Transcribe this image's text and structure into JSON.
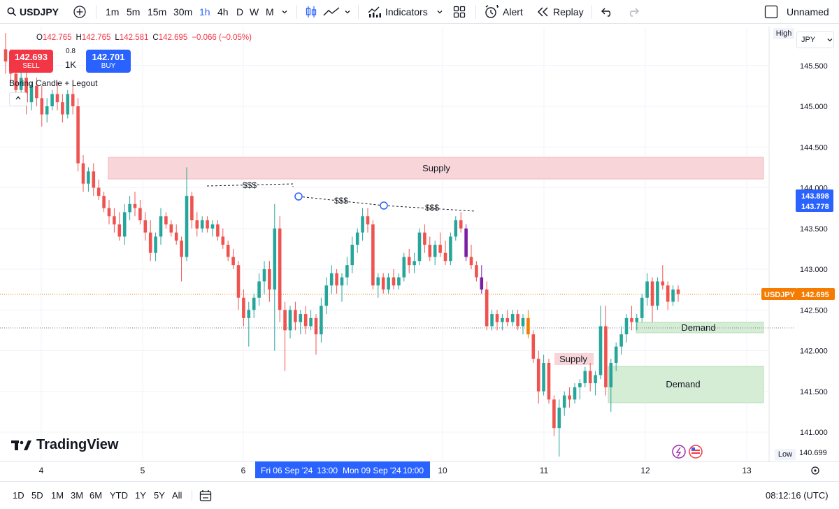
{
  "toolbar": {
    "symbol": "USDJPY",
    "timeframes": [
      "1m",
      "5m",
      "15m",
      "30m",
      "1h",
      "4h",
      "D",
      "W",
      "M"
    ],
    "active_timeframe": "1h",
    "indicators_label": "Indicators",
    "alert_label": "Alert",
    "replay_label": "Replay",
    "layout_name": "Unnamed"
  },
  "legend": {
    "open_label": "O",
    "open": "142.765",
    "high_label": "H",
    "high": "142.765",
    "low_label": "L",
    "low": "142.581",
    "close_label": "C",
    "close": "142.695",
    "change": "−0.066 (−0.05%)"
  },
  "trade": {
    "sell_price": "142.693",
    "sell_label": "SELL",
    "spread": "0.8",
    "quantity": "1K",
    "buy_price": "142.701",
    "buy_label": "BUY"
  },
  "indicator_name": "Boring Candle + Legout",
  "currency": "JPY",
  "price_axis": {
    "high_flag": "High",
    "low_flag": "Low",
    "low_value": "140.699",
    "ticks": [
      "145.500",
      "145.000",
      "144.500",
      "144.000",
      "143.500",
      "143.000",
      "142.500",
      "142.000",
      "141.500",
      "141.000"
    ],
    "last_label": "USDJPY",
    "last_price": "142.695",
    "selection_top": "143.898",
    "selection_bottom": "143.778"
  },
  "time_axis": {
    "ticks": [
      "4",
      "5",
      "6",
      "10",
      "11",
      "12",
      "13"
    ],
    "range_start": "Fri 06 Sep '24",
    "range_start_time": "13:00",
    "range_end": "Mon 09 Sep '24",
    "range_end_time": "10:00"
  },
  "zones": {
    "supply_main": "Supply",
    "supply_small": "Supply",
    "demand_upper": "Demand",
    "demand_lower": "Demand",
    "liquidity_1": "$$$",
    "liquidity_2": "$$$",
    "liquidity_3": "$$$"
  },
  "colors": {
    "up": "#26a69a",
    "down": "#ef5350",
    "orange": "#f57c00",
    "purple": "#7b1fa2",
    "supply_fill": "#f8d5d8",
    "demand_fill": "#d5ecd5",
    "accent": "#2962ff"
  },
  "brand": "TradingView",
  "bottombar": {
    "ranges": [
      "1D",
      "5D",
      "1M",
      "3M",
      "6M",
      "YTD",
      "1Y",
      "5Y",
      "All"
    ],
    "clock": "08:12:16 (UTC)"
  },
  "chart_data": {
    "type": "candlestick",
    "symbol": "USDJPY",
    "interval": "1h",
    "ylim": [
      140.6,
      145.9
    ],
    "candles": [
      [
        145.7,
        145.9,
        145.4,
        145.55
      ],
      [
        145.55,
        145.7,
        145.3,
        145.4
      ],
      [
        145.4,
        145.55,
        145.05,
        145.2
      ],
      [
        145.2,
        145.45,
        145.1,
        145.35
      ],
      [
        145.35,
        145.5,
        144.9,
        145.05
      ],
      [
        145.05,
        145.3,
        144.95,
        145.25
      ],
      [
        145.25,
        145.35,
        145.0,
        145.1
      ],
      [
        145.1,
        145.25,
        144.75,
        144.9
      ],
      [
        144.9,
        145.1,
        144.8,
        145.0
      ],
      [
        145.0,
        145.2,
        144.95,
        145.15
      ],
      [
        145.15,
        145.3,
        144.95,
        145.05
      ],
      [
        145.05,
        145.15,
        144.8,
        144.9
      ],
      [
        144.9,
        145.2,
        144.85,
        145.15
      ],
      [
        145.15,
        145.25,
        144.9,
        145.0
      ],
      [
        145.0,
        145.1,
        144.2,
        144.3
      ],
      [
        144.3,
        144.4,
        143.95,
        144.05
      ],
      [
        144.05,
        144.25,
        143.95,
        144.2
      ],
      [
        144.2,
        144.3,
        143.9,
        144.0
      ],
      [
        144.0,
        144.1,
        143.85,
        143.9
      ],
      [
        143.9,
        143.95,
        143.7,
        143.75
      ],
      [
        143.75,
        143.85,
        143.55,
        143.65
      ],
      [
        143.65,
        143.75,
        143.45,
        143.55
      ],
      [
        143.55,
        143.7,
        143.35,
        143.4
      ],
      [
        143.4,
        143.8,
        143.3,
        143.7
      ],
      [
        143.7,
        143.9,
        143.6,
        143.8
      ],
      [
        143.8,
        143.95,
        143.65,
        143.75
      ],
      [
        143.75,
        143.85,
        143.55,
        143.6
      ],
      [
        143.6,
        143.7,
        143.35,
        143.45
      ],
      [
        143.45,
        143.6,
        143.1,
        143.2
      ],
      [
        143.2,
        143.45,
        143.1,
        143.4
      ],
      [
        143.4,
        143.75,
        143.3,
        143.65
      ],
      [
        143.65,
        143.7,
        143.5,
        143.55
      ],
      [
        143.55,
        143.6,
        143.4,
        143.45
      ],
      [
        143.45,
        143.55,
        143.3,
        143.35
      ],
      [
        143.35,
        143.4,
        142.85,
        143.15
      ],
      [
        143.15,
        144.25,
        143.1,
        143.9
      ],
      [
        143.9,
        143.95,
        143.5,
        143.6
      ],
      [
        143.6,
        143.7,
        143.4,
        143.5
      ],
      [
        143.5,
        143.65,
        143.45,
        143.6
      ],
      [
        143.6,
        143.65,
        143.45,
        143.5
      ],
      [
        143.5,
        143.6,
        143.4,
        143.55
      ],
      [
        143.55,
        143.6,
        143.35,
        143.4
      ],
      [
        143.4,
        143.5,
        143.25,
        143.3
      ],
      [
        143.3,
        143.35,
        143.1,
        143.15
      ],
      [
        143.15,
        143.25,
        143.0,
        143.05
      ],
      [
        143.05,
        143.1,
        142.5,
        142.65
      ],
      [
        142.65,
        142.75,
        142.3,
        142.4
      ],
      [
        142.4,
        142.6,
        142.05,
        142.5
      ],
      [
        142.5,
        142.7,
        142.4,
        142.65
      ],
      [
        142.65,
        142.95,
        142.55,
        142.85
      ],
      [
        142.85,
        143.1,
        142.7,
        143.0
      ],
      [
        143.0,
        143.1,
        142.6,
        142.75
      ],
      [
        142.75,
        143.8,
        142.0,
        143.5
      ],
      [
        143.5,
        143.65,
        142.35,
        142.5
      ],
      [
        142.5,
        142.6,
        141.75,
        142.25
      ],
      [
        142.25,
        142.55,
        142.15,
        142.5
      ],
      [
        142.5,
        142.6,
        142.25,
        142.35
      ],
      [
        142.35,
        142.5,
        142.2,
        142.45
      ],
      [
        142.45,
        142.55,
        142.2,
        142.3
      ],
      [
        142.3,
        142.5,
        142.25,
        142.4
      ],
      [
        142.4,
        142.45,
        141.95,
        142.2
      ],
      [
        142.2,
        142.65,
        142.1,
        142.55
      ],
      [
        142.55,
        142.9,
        142.45,
        142.8
      ],
      [
        142.8,
        143.05,
        142.7,
        142.95
      ],
      [
        142.95,
        143.0,
        142.7,
        142.8
      ],
      [
        142.8,
        142.95,
        142.6,
        142.9
      ],
      [
        142.9,
        143.15,
        142.8,
        143.05
      ],
      [
        143.05,
        143.4,
        142.95,
        143.3
      ],
      [
        143.3,
        143.5,
        143.2,
        143.45
      ],
      [
        143.45,
        143.75,
        143.35,
        143.65
      ],
      [
        143.65,
        143.75,
        143.45,
        143.55
      ],
      [
        143.55,
        143.6,
        142.75,
        142.8
      ],
      [
        142.8,
        142.95,
        142.65,
        142.9
      ],
      [
        142.9,
        142.95,
        142.7,
        142.75
      ],
      [
        142.75,
        142.95,
        142.7,
        142.9
      ],
      [
        142.9,
        143.0,
        142.75,
        142.8
      ],
      [
        142.8,
        142.95,
        142.75,
        142.9
      ],
      [
        142.9,
        143.2,
        142.85,
        143.15
      ],
      [
        143.15,
        143.25,
        142.95,
        143.05
      ],
      [
        143.05,
        143.2,
        142.95,
        143.1
      ],
      [
        143.1,
        143.5,
        143.05,
        143.45
      ],
      [
        143.45,
        143.55,
        143.2,
        143.3
      ],
      [
        143.3,
        143.4,
        143.1,
        143.15
      ],
      [
        143.15,
        143.35,
        143.05,
        143.3
      ],
      [
        143.3,
        143.45,
        143.15,
        143.2
      ],
      [
        143.2,
        143.35,
        143.05,
        143.1
      ],
      [
        143.1,
        143.45,
        143.05,
        143.4
      ],
      [
        143.4,
        143.65,
        143.35,
        143.6
      ],
      [
        143.6,
        143.7,
        143.45,
        143.5
      ],
      [
        143.5,
        143.55,
        143.1,
        143.15
      ],
      [
        143.15,
        143.3,
        143.0,
        143.05
      ],
      [
        143.05,
        143.1,
        142.85,
        142.9
      ],
      [
        142.9,
        143.05,
        142.7,
        142.75
      ],
      [
        142.75,
        142.85,
        142.25,
        142.3
      ],
      [
        142.3,
        142.5,
        142.25,
        142.45
      ],
      [
        142.45,
        142.5,
        142.25,
        142.35
      ],
      [
        142.35,
        142.45,
        142.25,
        142.4
      ],
      [
        142.4,
        142.5,
        142.3,
        142.35
      ],
      [
        142.35,
        142.5,
        142.3,
        142.45
      ],
      [
        142.45,
        142.5,
        142.25,
        142.3
      ],
      [
        142.3,
        142.45,
        142.2,
        142.4
      ],
      [
        142.4,
        142.5,
        142.15,
        142.2
      ],
      [
        142.2,
        142.25,
        141.85,
        141.9
      ],
      [
        141.9,
        142.0,
        141.35,
        141.5
      ],
      [
        141.5,
        141.95,
        141.45,
        141.85
      ],
      [
        141.85,
        141.9,
        141.35,
        141.4
      ],
      [
        141.4,
        141.45,
        140.95,
        141.05
      ],
      [
        141.05,
        141.4,
        140.7,
        141.3
      ],
      [
        141.3,
        141.5,
        141.2,
        141.45
      ],
      [
        141.45,
        141.55,
        141.3,
        141.4
      ],
      [
        141.4,
        141.6,
        141.35,
        141.55
      ],
      [
        141.55,
        141.65,
        141.4,
        141.6
      ],
      [
        141.6,
        141.8,
        141.55,
        141.75
      ],
      [
        141.75,
        141.85,
        141.5,
        141.6
      ],
      [
        141.6,
        141.75,
        141.45,
        141.7
      ],
      [
        141.7,
        142.55,
        141.65,
        142.3
      ],
      [
        142.3,
        142.55,
        141.45,
        141.55
      ],
      [
        141.55,
        141.9,
        141.25,
        141.85
      ],
      [
        141.85,
        142.1,
        141.75,
        142.05
      ],
      [
        142.05,
        142.3,
        141.95,
        142.2
      ],
      [
        142.2,
        142.45,
        142.1,
        142.4
      ],
      [
        142.4,
        142.55,
        142.25,
        142.35
      ],
      [
        142.35,
        142.45,
        142.25,
        142.4
      ],
      [
        142.4,
        142.7,
        142.35,
        142.65
      ],
      [
        142.65,
        142.95,
        142.55,
        142.85
      ],
      [
        142.85,
        142.9,
        142.35,
        142.55
      ],
      [
        142.55,
        142.9,
        142.5,
        142.85
      ],
      [
        142.85,
        143.05,
        142.75,
        142.8
      ],
      [
        142.8,
        142.85,
        142.5,
        142.6
      ],
      [
        142.6,
        142.8,
        142.55,
        142.75
      ],
      [
        142.75,
        142.8,
        142.6,
        142.695
      ]
    ]
  }
}
